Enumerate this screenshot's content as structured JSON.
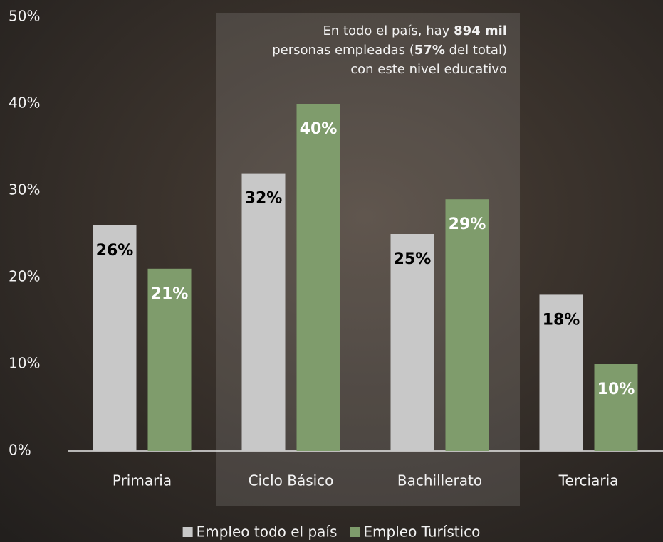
{
  "chart_data": {
    "type": "bar",
    "categories": [
      "Primaria",
      "Ciclo Básico",
      "Bachillerato",
      "Terciaria"
    ],
    "series": [
      {
        "name": "Empleo todo el país",
        "color": "#c8c8c8",
        "label_color": "#000000",
        "values": [
          26,
          32,
          25,
          18
        ],
        "value_labels": [
          "26%",
          "32%",
          "25%",
          "18%"
        ]
      },
      {
        "name": "Empleo Turístico",
        "color": "#7f9c6c",
        "label_color": "#ffffff",
        "values": [
          21,
          40,
          29,
          10
        ],
        "value_labels": [
          "21%",
          "40%",
          "29%",
          "10%"
        ]
      }
    ],
    "ylim": [
      0,
      50
    ],
    "yticks": [
      {
        "value": 0,
        "label": "0%"
      },
      {
        "value": 10,
        "label": "10%"
      },
      {
        "value": 20,
        "label": "20%"
      },
      {
        "value": 30,
        "label": "30%"
      },
      {
        "value": 40,
        "label": "40%"
      },
      {
        "value": 50,
        "label": "50%"
      }
    ],
    "annotation": [
      [
        {
          "text": "En todo el país, hay ",
          "bold": false
        },
        {
          "text": "894 mil",
          "bold": true
        }
      ],
      [
        {
          "text": "personas empleadas (",
          "bold": false
        },
        {
          "text": "57%",
          "bold": true
        },
        {
          "text": " del total)",
          "bold": false
        }
      ],
      [
        {
          "text": "con este nivel educativo",
          "bold": false
        }
      ]
    ],
    "legend": "bottom"
  }
}
